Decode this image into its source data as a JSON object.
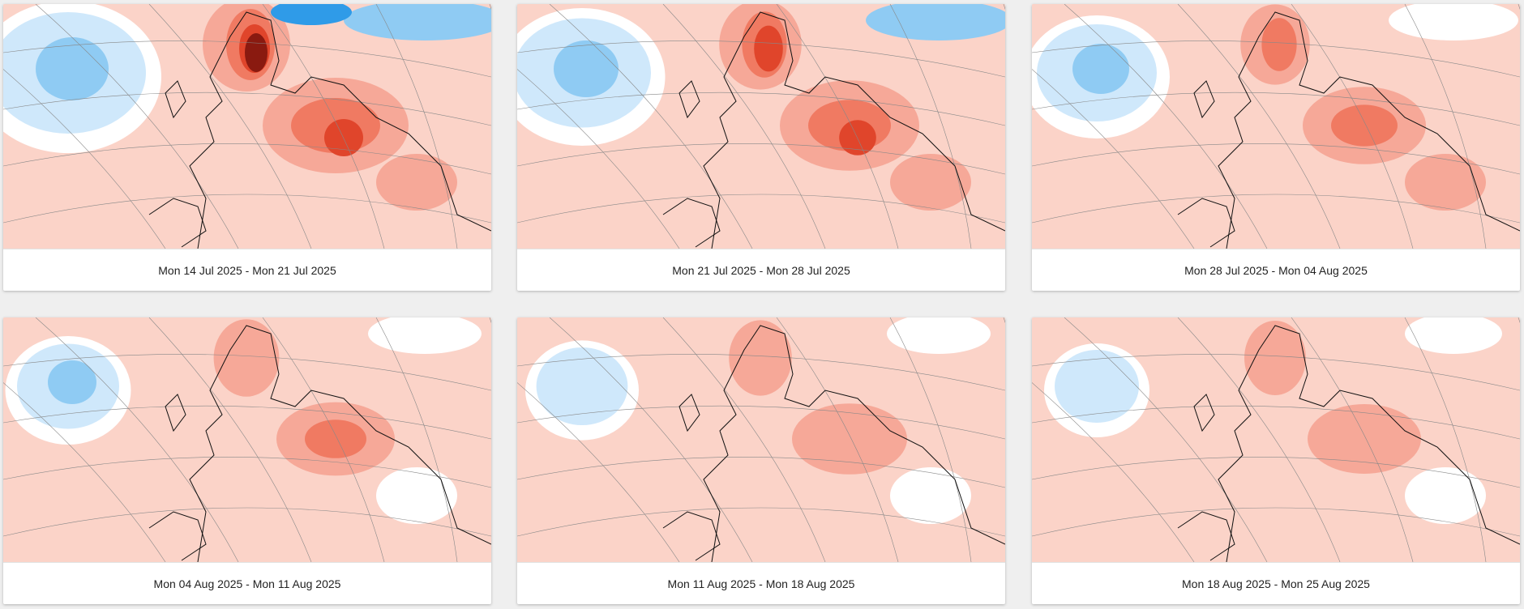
{
  "colors": {
    "background": "#fbd3c8",
    "warm_light": "#f6a898",
    "warm_mid": "#f07a62",
    "warm_strong": "#e0452b",
    "warm_extreme": "#8a1a10",
    "cool_light": "#cfe8fb",
    "cool_mid": "#8fcbf3",
    "cool_strong": "#2f9be8",
    "neutral": "#ffffff"
  },
  "panels": [
    {
      "caption": "Mon 14 Jul 2025 - Mon 21 Jul 2025",
      "intensity": 3,
      "cool_extent": 3
    },
    {
      "caption": "Mon 21 Jul 2025 - Mon 28 Jul 2025",
      "intensity": 2.6,
      "cool_extent": 2.5
    },
    {
      "caption": "Mon 28 Jul 2025 - Mon 04 Aug 2025",
      "intensity": 1.6,
      "cool_extent": 2
    },
    {
      "caption": "Mon 04 Aug 2025 - Mon 11 Aug 2025",
      "intensity": 1.3,
      "cool_extent": 1.5
    },
    {
      "caption": "Mon 11 Aug 2025 - Mon 18 Aug 2025",
      "intensity": 1.1,
      "cool_extent": 1.2
    },
    {
      "caption": "Mon 18 Aug 2025 - Mon 25 Aug 2025",
      "intensity": 1.0,
      "cool_extent": 1.0
    }
  ]
}
